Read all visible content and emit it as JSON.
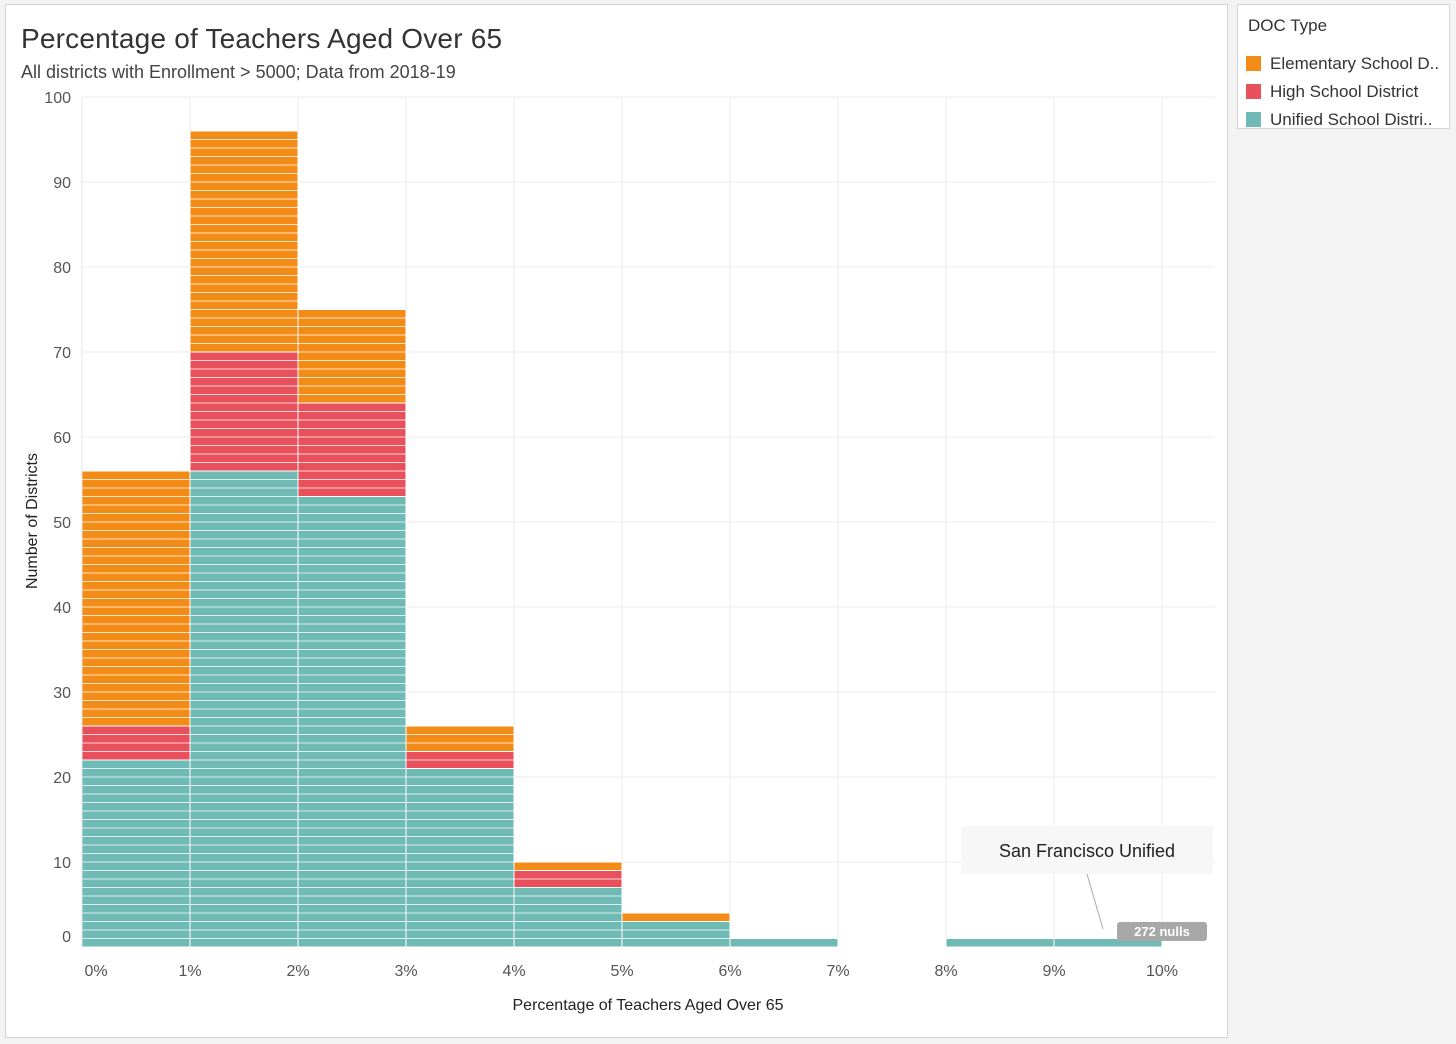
{
  "chart_data": {
    "type": "bar",
    "subtype": "stacked-histogram",
    "title": "Percentage of Teachers Aged Over 65",
    "subtitle": "All districts with Enrollment > 5000; Data from 2018-19",
    "xlabel": "Percentage of Teachers Aged Over 65",
    "ylabel": "Number of Districts",
    "x_tick_labels": [
      "0%",
      "1%",
      "2%",
      "3%",
      "4%",
      "5%",
      "6%",
      "7%",
      "8%",
      "9%",
      "10%"
    ],
    "y_tick_labels": [
      "0",
      "10",
      "20",
      "30",
      "40",
      "50",
      "60",
      "70",
      "80",
      "90",
      "100"
    ],
    "ylim": [
      0,
      100
    ],
    "grid": true,
    "bins": [
      "0-1%",
      "1-2%",
      "2-3%",
      "3-4%",
      "4-5%",
      "5-6%",
      "6-7%",
      "7-8%",
      "8-9%",
      "9-10%"
    ],
    "series": [
      {
        "name": "Unified School District",
        "color": "#6fbab4",
        "values": [
          22,
          56,
          53,
          21,
          7,
          3,
          1,
          0,
          1,
          1
        ]
      },
      {
        "name": "High School District",
        "color": "#e8515c",
        "values": [
          4,
          14,
          11,
          2,
          2,
          0,
          0,
          0,
          0,
          0
        ]
      },
      {
        "name": "Elementary School District",
        "color": "#f38b17",
        "values": [
          30,
          26,
          11,
          3,
          1,
          1,
          0,
          0,
          0,
          0
        ]
      }
    ],
    "annotation": {
      "text": "San Francisco Unified",
      "bin": 9
    },
    "nulls_badge": "272 nulls"
  },
  "legend": {
    "title": "DOC Type",
    "items": [
      {
        "label": "Elementary School D..",
        "color": "#f38b17"
      },
      {
        "label": "High School District",
        "color": "#e8515c"
      },
      {
        "label": "Unified School Distri..",
        "color": "#6fbab4"
      }
    ]
  }
}
